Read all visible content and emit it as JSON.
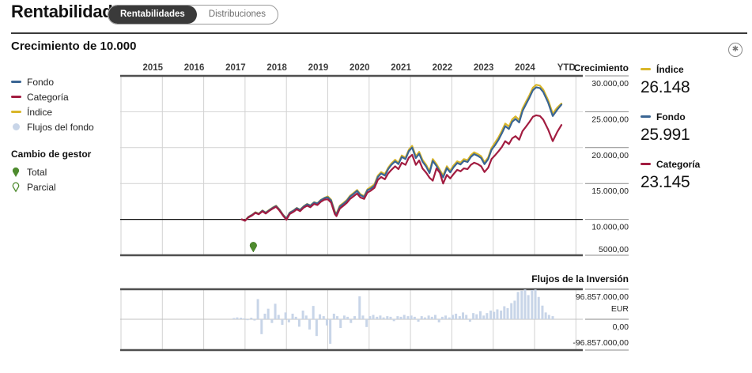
{
  "header": {
    "title": "Rentabilidad",
    "tabs": [
      {
        "label": "Rentabilidades",
        "active": true
      },
      {
        "label": "Distribuciones",
        "active": false
      }
    ]
  },
  "section": {
    "title": "Crecimiento de 10.000",
    "icon": "circled-asterisk"
  },
  "colors": {
    "fondo": "#3a6593",
    "categoria": "#a21c40",
    "indice": "#d9b629",
    "flows": "#c8d5e8",
    "manager": "#4e8b2e"
  },
  "legend": {
    "series": [
      {
        "label": "Fondo",
        "color_key": "fondo",
        "swatch": "line"
      },
      {
        "label": "Categoría",
        "color_key": "categoria",
        "swatch": "line"
      },
      {
        "label": "Índice",
        "color_key": "indice",
        "swatch": "line"
      },
      {
        "label": "Flujos del fondo",
        "color_key": "flows",
        "swatch": "dot"
      }
    ],
    "manager_change": {
      "title": "Cambio de gestor",
      "items": [
        {
          "label": "Total",
          "style": "filled"
        },
        {
          "label": "Parcial",
          "style": "outline"
        }
      ]
    }
  },
  "growth_panel": {
    "axis_title": "Crecimiento",
    "y_ticks": [
      {
        "label": "30.000,00",
        "v": 30000
      },
      {
        "label": "25.000,00",
        "v": 25000
      },
      {
        "label": "20.000,00",
        "v": 20000
      },
      {
        "label": "15.000,00",
        "v": 15000
      },
      {
        "label": "10.000,00",
        "v": 10000
      },
      {
        "label": "5000,00",
        "v": 5000
      }
    ]
  },
  "values_panel": [
    {
      "label": "Índice",
      "value": "26.148",
      "color_key": "indice"
    },
    {
      "label": "Fondo",
      "value": "25.991",
      "color_key": "fondo"
    },
    {
      "label": "Categoría",
      "value": "23.145",
      "color_key": "categoria"
    }
  ],
  "flows_panel": {
    "title": "Flujos de la Inversión",
    "labels": {
      "max": "96.857.000,00",
      "currency": "EUR",
      "zero": "0,00",
      "min": "-96.857.000,00"
    }
  },
  "chart_data": {
    "growth": {
      "type": "line",
      "title": "Crecimiento de 10.000",
      "x_labels": [
        "2015",
        "2016",
        "2017",
        "2018",
        "2019",
        "2020",
        "2021",
        "2022",
        "2023",
        "2024",
        "YTD"
      ],
      "ylim": [
        5000,
        30000
      ],
      "baseline": 10000,
      "grid": true,
      "x_units_since_2015": [
        2.92,
        3.0,
        3.08,
        3.17,
        3.25,
        3.33,
        3.42,
        3.5,
        3.58,
        3.67,
        3.75,
        3.83,
        3.92,
        4.0,
        4.08,
        4.17,
        4.25,
        4.33,
        4.42,
        4.5,
        4.58,
        4.67,
        4.75,
        4.83,
        4.92,
        5.0,
        5.08,
        5.17,
        5.21,
        5.29,
        5.38,
        5.46,
        5.54,
        5.63,
        5.71,
        5.79,
        5.88,
        5.96,
        6.04,
        6.13,
        6.21,
        6.29,
        6.38,
        6.46,
        6.54,
        6.63,
        6.71,
        6.79,
        6.88,
        6.96,
        7.04,
        7.13,
        7.21,
        7.29,
        7.38,
        7.46,
        7.54,
        7.63,
        7.71,
        7.79,
        7.88,
        7.96,
        8.04,
        8.13,
        8.21,
        8.29,
        8.38,
        8.46,
        8.54,
        8.63,
        8.71,
        8.79,
        8.88,
        8.96,
        9.04,
        9.13,
        9.21,
        9.29,
        9.38,
        9.46,
        9.54,
        9.63,
        9.71,
        9.79,
        9.88,
        9.96,
        10.04,
        10.13,
        10.21,
        10.33,
        10.44,
        10.55,
        10.65
      ],
      "series": [
        {
          "name": "Índice",
          "color_key": "indice",
          "final_label": "26.148",
          "values": [
            10000,
            9820,
            10350,
            10650,
            11000,
            10800,
            11250,
            10950,
            11300,
            11650,
            11900,
            11400,
            10650,
            10150,
            10950,
            11250,
            11600,
            11350,
            11850,
            12150,
            11950,
            12400,
            12250,
            12700,
            13000,
            13200,
            12750,
            11100,
            10800,
            11900,
            12300,
            12700,
            13300,
            13700,
            14100,
            13500,
            13250,
            14200,
            14500,
            14900,
            16100,
            16600,
            16300,
            17200,
            17800,
            18300,
            17900,
            18900,
            18600,
            19700,
            20250,
            18800,
            19400,
            18300,
            17600,
            16700,
            18400,
            17700,
            16900,
            16100,
            17400,
            16800,
            17500,
            18100,
            17900,
            18400,
            18250,
            18950,
            19350,
            19100,
            18800,
            17950,
            18650,
            19950,
            20650,
            21450,
            22350,
            23350,
            22950,
            23950,
            24350,
            23850,
            25450,
            26350,
            27350,
            28350,
            28750,
            28650,
            28100,
            26600,
            24750,
            25600,
            26148
          ]
        },
        {
          "name": "Fondo",
          "color_key": "fondo",
          "final_label": "25.991",
          "values": [
            10000,
            9810,
            10330,
            10620,
            10960,
            10760,
            11210,
            10910,
            11260,
            11610,
            11860,
            11360,
            10610,
            10110,
            10910,
            11210,
            11560,
            11310,
            11810,
            12110,
            11910,
            12360,
            12210,
            12660,
            12960,
            13080,
            12630,
            10980,
            10680,
            11780,
            12180,
            12580,
            13180,
            13580,
            13980,
            13380,
            13130,
            14080,
            14300,
            14700,
            15900,
            16400,
            16100,
            17000,
            17600,
            18100,
            17700,
            18700,
            18400,
            19500,
            20000,
            18550,
            19150,
            18050,
            17350,
            16450,
            18150,
            17450,
            16650,
            15850,
            17150,
            16550,
            17250,
            17850,
            17650,
            18150,
            18000,
            18700,
            19100,
            18850,
            18550,
            17700,
            18400,
            19700,
            20300,
            21100,
            22000,
            23000,
            22600,
            23600,
            24000,
            23500,
            25100,
            26000,
            27000,
            28000,
            28400,
            28300,
            27750,
            26250,
            24400,
            25300,
            25991
          ]
        },
        {
          "name": "Categoría",
          "color_key": "categoria",
          "final_label": "23.145",
          "values": [
            10000,
            9800,
            10280,
            10550,
            10900,
            10700,
            11120,
            10820,
            11170,
            11500,
            11750,
            11250,
            10520,
            9950,
            10750,
            11050,
            11400,
            11150,
            11650,
            11900,
            11700,
            12150,
            12000,
            12450,
            12750,
            12800,
            12350,
            10750,
            10450,
            11500,
            11900,
            12300,
            12850,
            13250,
            13600,
            13050,
            12850,
            13750,
            14000,
            14400,
            15500,
            15900,
            15600,
            16400,
            16900,
            17400,
            17000,
            17900,
            17600,
            18600,
            19000,
            17600,
            18200,
            17100,
            16500,
            15800,
            15400,
            17100,
            16500,
            15000,
            16200,
            15700,
            16300,
            16900,
            16700,
            17100,
            17000,
            17600,
            17900,
            17700,
            17400,
            16600,
            17200,
            18400,
            18900,
            19500,
            20100,
            20900,
            20500,
            21300,
            21600,
            21100,
            22300,
            22900,
            23600,
            24300,
            24500,
            24400,
            23900,
            22500,
            20900,
            22200,
            23145
          ]
        }
      ],
      "manager_change_marker": {
        "x_unit": 3.2,
        "type": "Total"
      }
    },
    "flows": {
      "type": "bar",
      "title": "Flujos de la Inversión",
      "ylim_eur": [
        -96857000,
        96857000
      ],
      "unit": "EUR",
      "bars_x_value_millions": [
        [
          2.73,
          4
        ],
        [
          2.81,
          6
        ],
        [
          2.9,
          5
        ],
        [
          2.98,
          3
        ],
        [
          3.06,
          -3
        ],
        [
          3.15,
          5
        ],
        [
          3.23,
          -4
        ],
        [
          3.31,
          65
        ],
        [
          3.4,
          -48
        ],
        [
          3.48,
          18
        ],
        [
          3.56,
          34
        ],
        [
          3.65,
          -12
        ],
        [
          3.73,
          50
        ],
        [
          3.81,
          14
        ],
        [
          3.9,
          -18
        ],
        [
          3.98,
          22
        ],
        [
          4.06,
          -10
        ],
        [
          4.15,
          18
        ],
        [
          4.23,
          8
        ],
        [
          4.31,
          -24
        ],
        [
          4.4,
          28
        ],
        [
          4.48,
          12
        ],
        [
          4.56,
          -33
        ],
        [
          4.65,
          43
        ],
        [
          4.73,
          -54
        ],
        [
          4.81,
          16
        ],
        [
          4.9,
          10
        ],
        [
          4.98,
          -20
        ],
        [
          5.06,
          -79
        ],
        [
          5.15,
          18
        ],
        [
          5.23,
          10
        ],
        [
          5.31,
          -28
        ],
        [
          5.4,
          12
        ],
        [
          5.48,
          8
        ],
        [
          5.56,
          -12
        ],
        [
          5.65,
          10
        ],
        [
          5.77,
          74
        ],
        [
          5.85,
          12
        ],
        [
          5.94,
          -25
        ],
        [
          6.02,
          10
        ],
        [
          6.1,
          14
        ],
        [
          6.19,
          8
        ],
        [
          6.27,
          12
        ],
        [
          6.35,
          6
        ],
        [
          6.44,
          10
        ],
        [
          6.52,
          8
        ],
        [
          6.6,
          -6
        ],
        [
          6.69,
          10
        ],
        [
          6.77,
          8
        ],
        [
          6.85,
          14
        ],
        [
          6.94,
          10
        ],
        [
          7.02,
          12
        ],
        [
          7.1,
          8
        ],
        [
          7.19,
          -8
        ],
        [
          7.27,
          10
        ],
        [
          7.35,
          6
        ],
        [
          7.44,
          12
        ],
        [
          7.52,
          8
        ],
        [
          7.6,
          14
        ],
        [
          7.69,
          -10
        ],
        [
          7.77,
          8
        ],
        [
          7.85,
          12
        ],
        [
          7.94,
          6
        ],
        [
          8.02,
          14
        ],
        [
          8.1,
          18
        ],
        [
          8.19,
          10
        ],
        [
          8.27,
          22
        ],
        [
          8.35,
          14
        ],
        [
          8.44,
          -8
        ],
        [
          8.52,
          20
        ],
        [
          8.6,
          16
        ],
        [
          8.69,
          26
        ],
        [
          8.77,
          12
        ],
        [
          8.85,
          20
        ],
        [
          8.94,
          28
        ],
        [
          9.02,
          24
        ],
        [
          9.1,
          32
        ],
        [
          9.19,
          28
        ],
        [
          9.27,
          42
        ],
        [
          9.35,
          36
        ],
        [
          9.44,
          52
        ],
        [
          9.52,
          60
        ],
        [
          9.6,
          88
        ],
        [
          9.69,
          92
        ],
        [
          9.77,
          96
        ],
        [
          9.85,
          78
        ],
        [
          9.94,
          94
        ],
        [
          10.02,
          96
        ],
        [
          10.1,
          72
        ],
        [
          10.19,
          44
        ],
        [
          10.27,
          22
        ],
        [
          10.35,
          14
        ],
        [
          10.44,
          10
        ]
      ]
    }
  }
}
